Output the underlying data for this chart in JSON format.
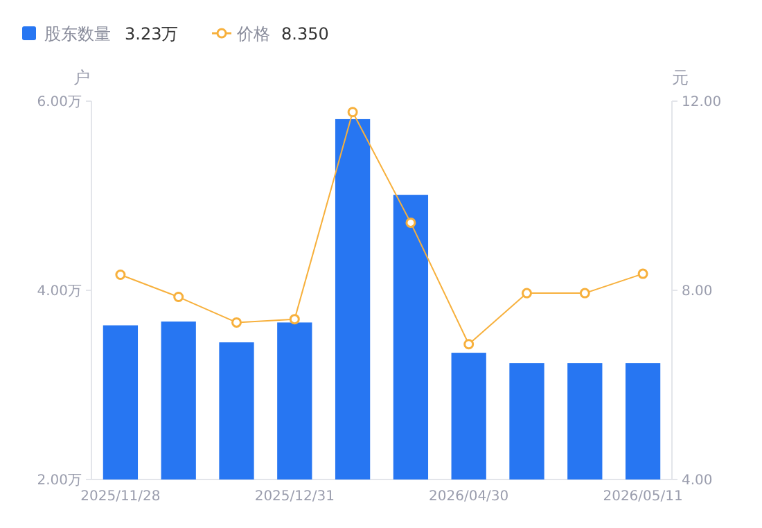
{
  "chart_data": {
    "type": "bar",
    "categories": [
      "2025/11/28",
      null,
      null,
      "2025/12/31",
      null,
      null,
      "2026/04/30",
      null,
      null,
      "2026/05/11"
    ],
    "series": [
      {
        "name": "股东数量",
        "color": "#2776f2",
        "values": [
          3.63,
          3.67,
          3.45,
          3.66,
          5.81,
          5.01,
          3.34,
          3.23,
          3.23,
          3.23
        ]
      },
      {
        "name": "价格",
        "type": "line",
        "axis": "y2",
        "color": "#f7b03c",
        "marker": "circle",
        "values": [
          8.33,
          7.86,
          7.32,
          7.39,
          11.77,
          9.43,
          6.86,
          7.94,
          7.94,
          8.35
        ]
      }
    ],
    "ylim": [
      2,
      6
    ],
    "yticks": [
      {
        "value": 2,
        "label": "2.00万"
      },
      {
        "value": 4,
        "label": "4.00万"
      },
      {
        "value": 6,
        "label": "6.00万"
      }
    ],
    "y2lim": [
      4,
      12
    ],
    "y2ticks": [
      {
        "value": 4,
        "label": "4.00"
      },
      {
        "value": 8,
        "label": "8.00"
      },
      {
        "value": 12,
        "label": "12.00"
      }
    ],
    "ylabel": "户",
    "y2label": "元",
    "legend": "top left",
    "grid": false,
    "annotations": [
      "3.23万",
      "8.350"
    ]
  }
}
